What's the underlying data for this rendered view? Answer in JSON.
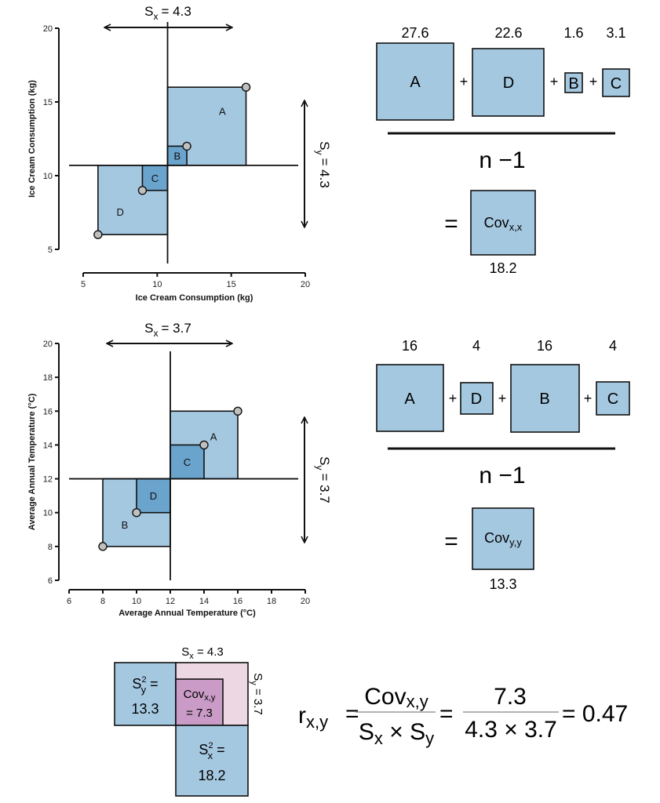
{
  "colors": {
    "light_blue": "#a5c8e1",
    "mid_blue": "#6aa3cb",
    "point": "#c0c0c0",
    "pink": "#ecd7e3",
    "purple": "#c99bc6"
  },
  "chart_data": [
    {
      "type": "scatter",
      "xlabel": "Ice Cream Consumption (kg)",
      "ylabel": "Ice Cream Consumption (kg)",
      "xlim": [
        5,
        20
      ],
      "ylim": [
        5,
        20
      ],
      "xticks": [
        "5",
        "10",
        "15",
        "20"
      ],
      "yticks": [
        "5",
        "10",
        "15",
        "20"
      ],
      "mean": [
        10.7,
        10.7
      ],
      "points": [
        {
          "label": "A",
          "x": 16,
          "y": 16
        },
        {
          "label": "B",
          "x": 12,
          "y": 12
        },
        {
          "label": "C",
          "x": 9,
          "y": 9
        },
        {
          "label": "D",
          "x": 6,
          "y": 6
        }
      ],
      "sx_label": "S",
      "sx_sub": "x",
      "sx_value": "= 4.3",
      "sy_label": "S",
      "sy_sub": "y",
      "sy_value": "= 4.3"
    },
    {
      "type": "scatter",
      "xlabel": "Average Annual Temperature (°C)",
      "ylabel": "Average Annual Temperature  (°C)",
      "xlim": [
        6,
        20
      ],
      "ylim": [
        6,
        20
      ],
      "xticks": [
        "6",
        "8",
        "10",
        "12",
        "14",
        "16",
        "18",
        "20"
      ],
      "yticks": [
        "6",
        "8",
        "10",
        "12",
        "14",
        "16",
        "18",
        "20"
      ],
      "mean": [
        12,
        12
      ],
      "points": [
        {
          "label": "A",
          "x": 16,
          "y": 16
        },
        {
          "label": "C",
          "x": 14,
          "y": 14
        },
        {
          "label": "D",
          "x": 10,
          "y": 10
        },
        {
          "label": "B",
          "x": 8,
          "y": 8
        }
      ],
      "sx_label": "S",
      "sx_sub": "x",
      "sx_value": "= 3.7",
      "sy_label": "S",
      "sy_sub": "y",
      "sy_value": "= 3.7"
    }
  ],
  "eq1": {
    "terms": [
      {
        "label": "A",
        "value": "27.6"
      },
      {
        "label": "D",
        "value": "22.6"
      },
      {
        "label": "B",
        "value": "1.6"
      },
      {
        "label": "C",
        "value": "3.1"
      }
    ],
    "plus": "+",
    "denominator": "n −1",
    "equals": "=",
    "result_label": "Cov",
    "result_sub": "x,x",
    "result_value": "18.2"
  },
  "eq2": {
    "terms": [
      {
        "label": "A",
        "value": "16"
      },
      {
        "label": "D",
        "value": "4"
      },
      {
        "label": "B",
        "value": "16"
      },
      {
        "label": "C",
        "value": "4"
      }
    ],
    "plus": "+",
    "denominator": "n −1",
    "equals": "=",
    "result_label": "Cov",
    "result_sub": "y,y",
    "result_value": "13.3"
  },
  "summary": {
    "sx_top": "S",
    "sx_top_sub": "x",
    "sx_top_value": " = 4.3",
    "sy_side": "S",
    "sy_side_sub": "y",
    "sy_side_value": " = 3.7",
    "sy2": "S",
    "sy2_sup": "2",
    "sy2_sub": "y",
    "sy2_eq": " =",
    "sy2_value": "13.3",
    "cov": "Cov",
    "cov_sub": "x,y",
    "cov_value": "= 7.3",
    "sx2": "S",
    "sx2_sup": "2",
    "sx2_sub": "x",
    "sx2_eq": " =",
    "sx2_value": "18.2",
    "r": "r",
    "r_sub": "x,y",
    "eq": "=",
    "num1": "Cov",
    "num1_sub": "x,y",
    "den1a": "S",
    "den1a_sub": "x",
    "times": " × ",
    "den1b": "S",
    "den1b_sub": "y",
    "num2": "7.3",
    "den2": "4.3 × 3.7",
    "result": "= 0.47"
  }
}
